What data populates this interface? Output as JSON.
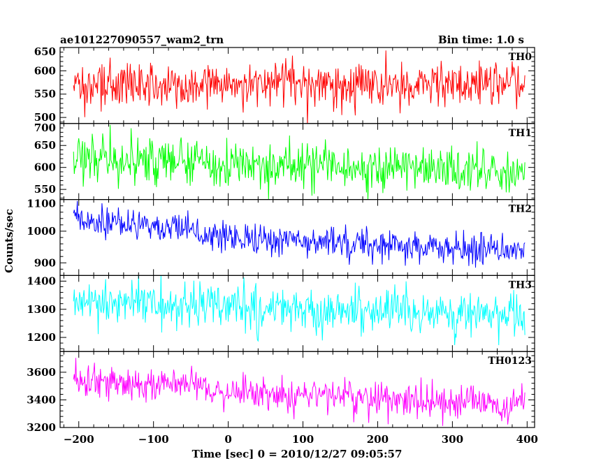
{
  "header": {
    "title": "ae101227090557_wam2_trn",
    "bin_time": "Bin time: 1.0 s"
  },
  "chart_data": {
    "type": "line",
    "xlabel": "Time [sec] 0 = 2010/12/27 09:05:57",
    "ylabel": "Counts/sec",
    "xlim": [
      -225,
      410
    ],
    "x_range": [
      -207,
      397
    ],
    "bin_time_s": 1.0,
    "x_ticks": [
      -200,
      -100,
      0,
      100,
      200,
      300,
      400
    ],
    "x_tick_labels": [
      "−200",
      "−100",
      "0",
      "100",
      "200",
      "300",
      "400"
    ],
    "panels": [
      {
        "name": "TH0",
        "color": "#ff0000",
        "ylim": [
          487,
          650
        ],
        "y_ticks": [
          500,
          550,
          600,
          650
        ],
        "y_tick_labels": [
          "500",
          "550",
          "600",
          "650"
        ],
        "segments": [
          {
            "x": [
              -207,
              397
            ],
            "y": [
              572,
              570
            ]
          }
        ],
        "noise_sd": 24
      },
      {
        "name": "TH1",
        "color": "#00ff00",
        "ylim": [
          527,
          700
        ],
        "y_ticks": [
          550,
          600,
          650,
          700
        ],
        "y_tick_labels": [
          "550",
          "600",
          "650",
          "700"
        ],
        "segments": [
          {
            "x": [
              -207,
              397
            ],
            "y": [
              622,
              588
            ]
          }
        ],
        "noise_sd": 26
      },
      {
        "name": "TH2",
        "color": "#0000ff",
        "ylim": [
          860,
          1100
        ],
        "y_ticks": [
          900,
          1000,
          1100
        ],
        "y_tick_labels": [
          "900",
          "1000",
          "1100"
        ],
        "segments": [
          {
            "x": [
              -207,
              -40
            ],
            "y": [
              1035,
              1005
            ]
          },
          {
            "x": [
              -40,
              397
            ],
            "y": [
              985,
              935
            ]
          }
        ],
        "noise_sd": 25
      },
      {
        "name": "TH3",
        "color": "#00ffff",
        "ylim": [
          1150,
          1420
        ],
        "y_ticks": [
          1200,
          1300,
          1400
        ],
        "y_tick_labels": [
          "1200",
          "1300",
          "1400"
        ],
        "segments": [
          {
            "x": [
              -207,
              397
            ],
            "y": [
              1328,
              1278
            ]
          }
        ],
        "noise_sd": 38
      },
      {
        "name": "TH0123",
        "color": "#ff00ff",
        "ylim": [
          3200,
          3750
        ],
        "y_ticks": [
          3200,
          3400,
          3600
        ],
        "y_tick_labels": [
          "3200",
          "3400",
          "3600"
        ],
        "segments": [
          {
            "x": [
              -207,
              -30
            ],
            "y": [
              3545,
              3490
            ]
          },
          {
            "x": [
              -30,
              397
            ],
            "y": [
              3455,
              3370
            ]
          }
        ],
        "noise_sd": 62
      }
    ]
  }
}
